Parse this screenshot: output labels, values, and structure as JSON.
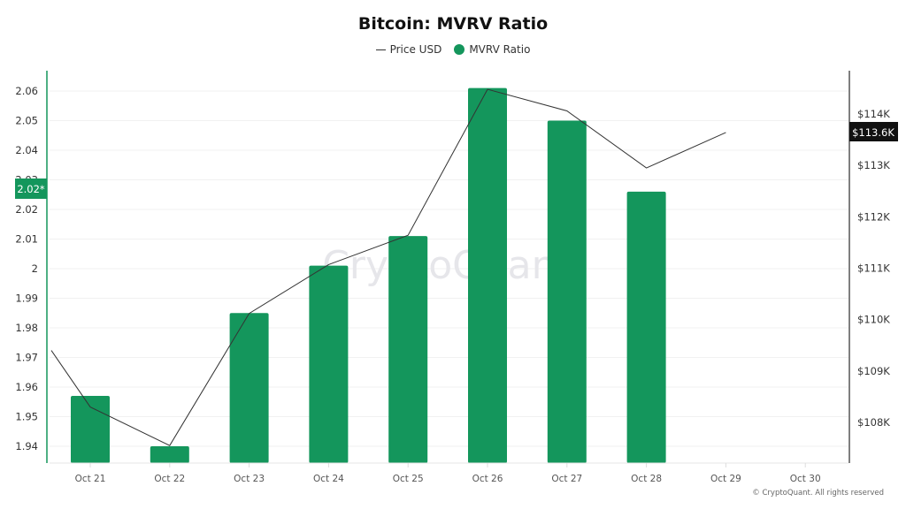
{
  "chart_data": {
    "type": "bar",
    "title": "Bitcoin: MVRV Ratio",
    "categories": [
      "Oct 21",
      "Oct 22",
      "Oct 23",
      "Oct 24",
      "Oct 25",
      "Oct 26",
      "Oct 27",
      "Oct 28",
      "Oct 29",
      "Oct 30"
    ],
    "series": [
      {
        "name": "MVRV Ratio",
        "type": "bar",
        "axis": "left",
        "color": "#14965c",
        "values": [
          1.957,
          1.94,
          1.985,
          2.001,
          2.011,
          2.061,
          2.05,
          2.026,
          null,
          null
        ]
      },
      {
        "name": "Price USD",
        "type": "line",
        "axis": "right",
        "color": "#333333",
        "values": [
          108300,
          107550,
          110120,
          111070,
          111640,
          114480,
          114060,
          112950,
          113640,
          null
        ],
        "leading_point": {
          "x": "Oct 20.5",
          "value": 109400
        }
      }
    ],
    "left_axis": {
      "ticks": [
        "2.06",
        "2.05",
        "2.04",
        "2.03",
        "2.02",
        "2.01",
        "2",
        "1.99",
        "1.98",
        "1.97",
        "1.96",
        "1.95",
        "1.94"
      ],
      "ylim": [
        1.934,
        2.066
      ],
      "current_label": "2.02*"
    },
    "right_axis": {
      "ticks": [
        "$114K",
        "$113K",
        "$112K",
        "$111K",
        "$110K",
        "$109K",
        "$108K"
      ],
      "current_label": "$113.6K"
    },
    "xlabel": "",
    "ylabel": "",
    "grid": true,
    "legend_position": "top-center"
  },
  "header": {
    "title": "Bitcoin: MVRV Ratio"
  },
  "legend": {
    "items": [
      {
        "label": "Price USD",
        "icon": "line-icon"
      },
      {
        "label": "MVRV Ratio",
        "icon": "dot-icon",
        "color": "#14965c"
      }
    ]
  },
  "watermark": "CryptoQuant",
  "footer": {
    "copyright": "© CryptoQuant. All rights reserved"
  },
  "colors": {
    "bar": "#14965c",
    "left_axis": "#14965c",
    "right_axis": "#333333",
    "price_badge_bg": "#111111"
  }
}
